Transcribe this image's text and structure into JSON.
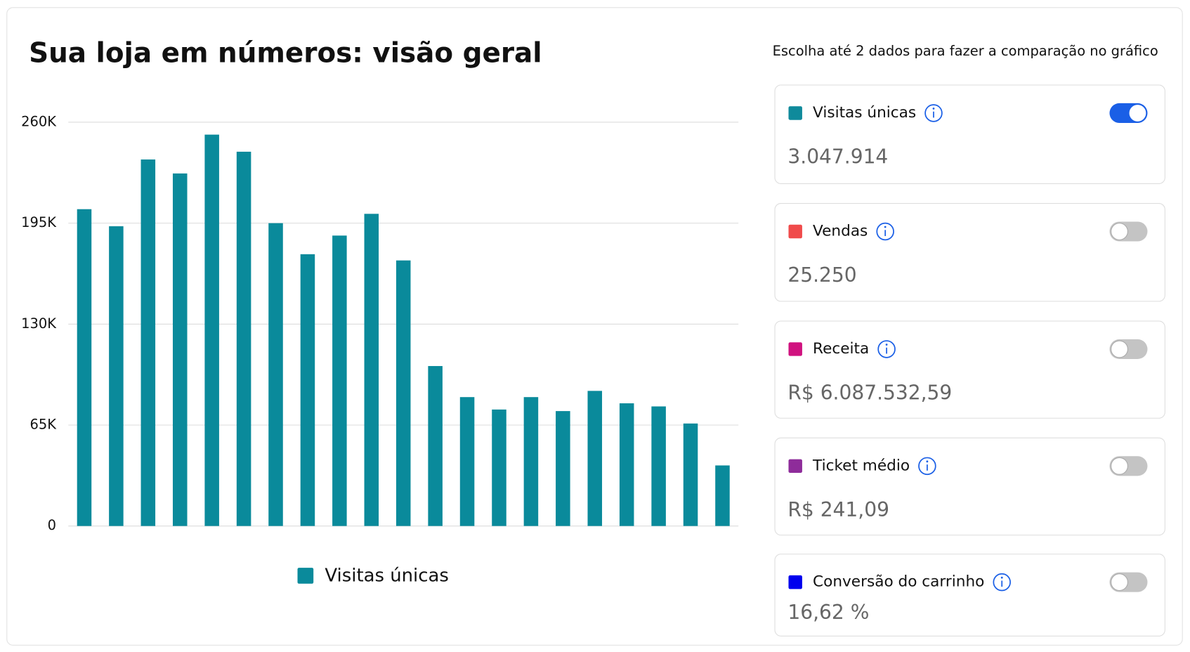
{
  "header": {
    "title": "Sua loja em números: visão geral",
    "instruction": "Escolha até 2 dados para fazer a comparação no gráfico"
  },
  "chart_data": {
    "type": "bar",
    "categories": [
      null,
      null,
      null,
      null,
      null,
      null,
      null,
      null,
      null,
      null,
      null,
      null,
      null,
      null,
      null,
      null,
      null,
      null,
      null,
      null,
      null
    ],
    "series": [
      {
        "name": "Visitas únicas",
        "color": "#0a8a9b",
        "values": [
          204000,
          193000,
          236000,
          227000,
          252000,
          241000,
          195000,
          175000,
          187000,
          201000,
          171000,
          103000,
          83000,
          75000,
          83000,
          74000,
          87000,
          79000,
          77000,
          66000,
          39000
        ]
      }
    ],
    "ylim": [
      0,
      260000
    ],
    "yticks": [
      0,
      {
        "value": 65000,
        "label": "65K"
      },
      {
        "value": 130000,
        "label": "130K"
      },
      {
        "value": 195000,
        "label": "195K"
      },
      {
        "value": 260000,
        "label": "260K"
      }
    ],
    "grid": true
  },
  "metrics": [
    {
      "name": "Visitas únicas",
      "color": "#0f8a9b",
      "value": "3.047.914",
      "enabled": true
    },
    {
      "name": "Vendas",
      "color": "#f04b4b",
      "value": "25.250",
      "enabled": false
    },
    {
      "name": "Receita",
      "color": "#d0127f",
      "value": "R$ 6.087.532,59",
      "enabled": false
    },
    {
      "name": "Ticket médio",
      "color": "#8e2c9a",
      "value": "R$ 241,09",
      "enabled": false
    },
    {
      "name": "Conversão do carrinho",
      "color": "#0000ee",
      "value": "16,62 %",
      "enabled": false
    }
  ]
}
